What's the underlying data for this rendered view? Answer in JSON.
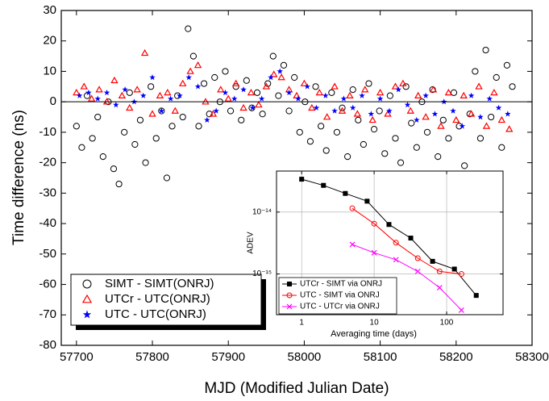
{
  "chart_data": [
    {
      "type": "scatter",
      "xlabel": "MJD (Modified Julian Date)",
      "ylabel": "Time difference (ns)",
      "xlim": [
        57680,
        58300
      ],
      "ylim": [
        -80,
        30
      ],
      "xticks": [
        57700,
        57800,
        57900,
        58000,
        58100,
        58200,
        58300
      ],
      "yticks": [
        -80,
        -70,
        -60,
        -50,
        -40,
        -30,
        -20,
        -10,
        0,
        10,
        20,
        30
      ],
      "reference_line": 0,
      "legend": "lower left",
      "series": [
        {
          "name": "SIMT - SIMT(ONRJ)",
          "color": "#000000",
          "marker": "open-circle",
          "x": [
            57700,
            57707,
            57714,
            57721,
            57728,
            57735,
            57742,
            57749,
            57756,
            57763,
            57770,
            57777,
            57784,
            57791,
            57798,
            57805,
            57812,
            57819,
            57826,
            57833,
            57840,
            57847,
            57854,
            57861,
            57868,
            57875,
            57882,
            57889,
            57896,
            57903,
            57910,
            57917,
            57924,
            57931,
            57938,
            57945,
            57952,
            57959,
            57966,
            57973,
            57980,
            57987,
            57994,
            58001,
            58008,
            58015,
            58022,
            58029,
            58036,
            58043,
            58050,
            58057,
            58064,
            58071,
            58078,
            58085,
            58092,
            58099,
            58106,
            58113,
            58120,
            58127,
            58134,
            58141,
            58148,
            58155,
            58162,
            58169,
            58176,
            58183,
            58190,
            58197,
            58204,
            58211,
            58218,
            58225,
            58232,
            58239,
            58246,
            58253,
            58260,
            58267,
            58274
          ],
          "values": [
            -8,
            -15,
            2,
            -12,
            -5,
            -18,
            0,
            -22,
            -27,
            -10,
            3,
            -14,
            -6,
            -20,
            5,
            -12,
            -3,
            -25,
            -8,
            2,
            -5,
            24,
            15,
            -8,
            6,
            -4,
            8,
            0,
            10,
            -3,
            5,
            -6,
            7,
            -2,
            3,
            -4,
            6,
            15,
            2,
            12,
            -3,
            8,
            -10,
            0,
            -13,
            5,
            -8,
            -16,
            3,
            -10,
            -2,
            -18,
            4,
            -6,
            -14,
            6,
            -9,
            -3,
            -17,
            2,
            -12,
            -20,
            5,
            -7,
            -15,
            0,
            -10,
            4,
            -18,
            -6,
            -12,
            3,
            -8,
            -21,
            -4,
            10,
            -12,
            17,
            -5,
            8,
            -15,
            12,
            5
          ]
        },
        {
          "name": "UTCr - UTC(ONRJ)",
          "color": "#ff0000",
          "marker": "open-triangle",
          "x": [
            57700,
            57710,
            57720,
            57730,
            57740,
            57750,
            57760,
            57770,
            57780,
            57790,
            57800,
            57810,
            57820,
            57830,
            57840,
            57850,
            57860,
            57870,
            57880,
            57890,
            57900,
            57910,
            57920,
            57930,
            57940,
            57950,
            57960,
            57970,
            57980,
            57990,
            58000,
            58010,
            58020,
            58030,
            58040,
            58050,
            58060,
            58070,
            58080,
            58090,
            58100,
            58110,
            58120,
            58130,
            58140,
            58150,
            58160,
            58170,
            58180,
            58190,
            58200,
            58210,
            58220,
            58230,
            58240,
            58250,
            58260,
            58270
          ],
          "values": [
            3,
            5,
            1,
            4,
            0,
            7,
            2,
            -2,
            4,
            16,
            -4,
            2,
            3,
            -3,
            6,
            10,
            12,
            0,
            -4,
            4,
            1,
            6,
            -2,
            3,
            -1,
            5,
            9,
            8,
            4,
            2,
            6,
            -2,
            3,
            -5,
            5,
            -3,
            2,
            -4,
            4,
            -6,
            3,
            -4,
            5,
            6,
            -3,
            2,
            -5,
            4,
            -8,
            3,
            -6,
            2,
            -4,
            5,
            -8,
            3,
            -6,
            -9
          ]
        },
        {
          "name": "UTC - UTC(ONRJ)",
          "color": "#0000ff",
          "marker": "star",
          "x": [
            57704,
            57716,
            57728,
            57740,
            57752,
            57764,
            57776,
            57788,
            57800,
            57812,
            57824,
            57836,
            57848,
            57860,
            57872,
            57884,
            57896,
            57908,
            57920,
            57932,
            57944,
            57956,
            57968,
            57980,
            57992,
            58004,
            58016,
            58028,
            58040,
            58052,
            58064,
            58076,
            58088,
            58100,
            58112,
            58124,
            58136,
            58148,
            58160,
            58172,
            58184,
            58196,
            58208,
            58220,
            58232,
            58244,
            58256,
            58268
          ],
          "values": [
            2,
            3,
            1,
            3,
            -1,
            4,
            0,
            2,
            8,
            -3,
            1,
            2,
            8,
            5,
            -6,
            -3,
            3,
            1,
            4,
            -2,
            1,
            8,
            10,
            3,
            1,
            5,
            -2,
            2,
            -3,
            1,
            -2,
            2,
            -4,
            1,
            -3,
            4,
            -1,
            -6,
            2,
            -4,
            0,
            -3,
            -8,
            2,
            -5,
            1,
            -2,
            -4
          ]
        }
      ]
    },
    {
      "type": "line",
      "xlabel": "Averaging time (days)",
      "ylabel": "ADEV",
      "xscale": "log",
      "yscale": "log",
      "grid": true,
      "xlim": [
        0.45,
        600
      ],
      "ylim": [
        2.2e-16,
        4.6e-14
      ],
      "xticks": [
        1,
        10,
        100
      ],
      "yticks": [
        {
          "value": 1e-15,
          "label": "10⁻¹⁵"
        },
        {
          "value": 1e-14,
          "label": "10⁻¹⁴"
        }
      ],
      "legend": "lower left",
      "series": [
        {
          "name": "UTCr - SIMT via ONRJ",
          "color": "#000000",
          "marker": "square",
          "x": [
            1,
            2,
            4,
            8,
            16,
            32,
            64,
            128,
            256
          ],
          "values": [
            3.4e-14,
            2.7e-14,
            2e-14,
            1.5e-14,
            6.3e-15,
            3.8e-15,
            1.6e-15,
            1.2e-15,
            4.5e-16
          ]
        },
        {
          "name": "UTC - SIMT via ONRJ",
          "color": "#ff0000",
          "marker": "open-circle",
          "x": [
            5,
            10,
            20,
            40,
            80,
            160
          ],
          "values": [
            1.15e-14,
            6.5e-15,
            3.2e-15,
            1.8e-15,
            1.1e-15,
            1e-15
          ]
        },
        {
          "name": "UTC - UTCr via ONRJ",
          "color": "#ff00ff",
          "marker": "cross",
          "x": [
            5,
            10,
            20,
            40,
            80,
            160
          ],
          "values": [
            3e-15,
            2.2e-15,
            1.7e-15,
            1.1e-15,
            6e-16,
            2.6e-16
          ]
        }
      ]
    }
  ]
}
